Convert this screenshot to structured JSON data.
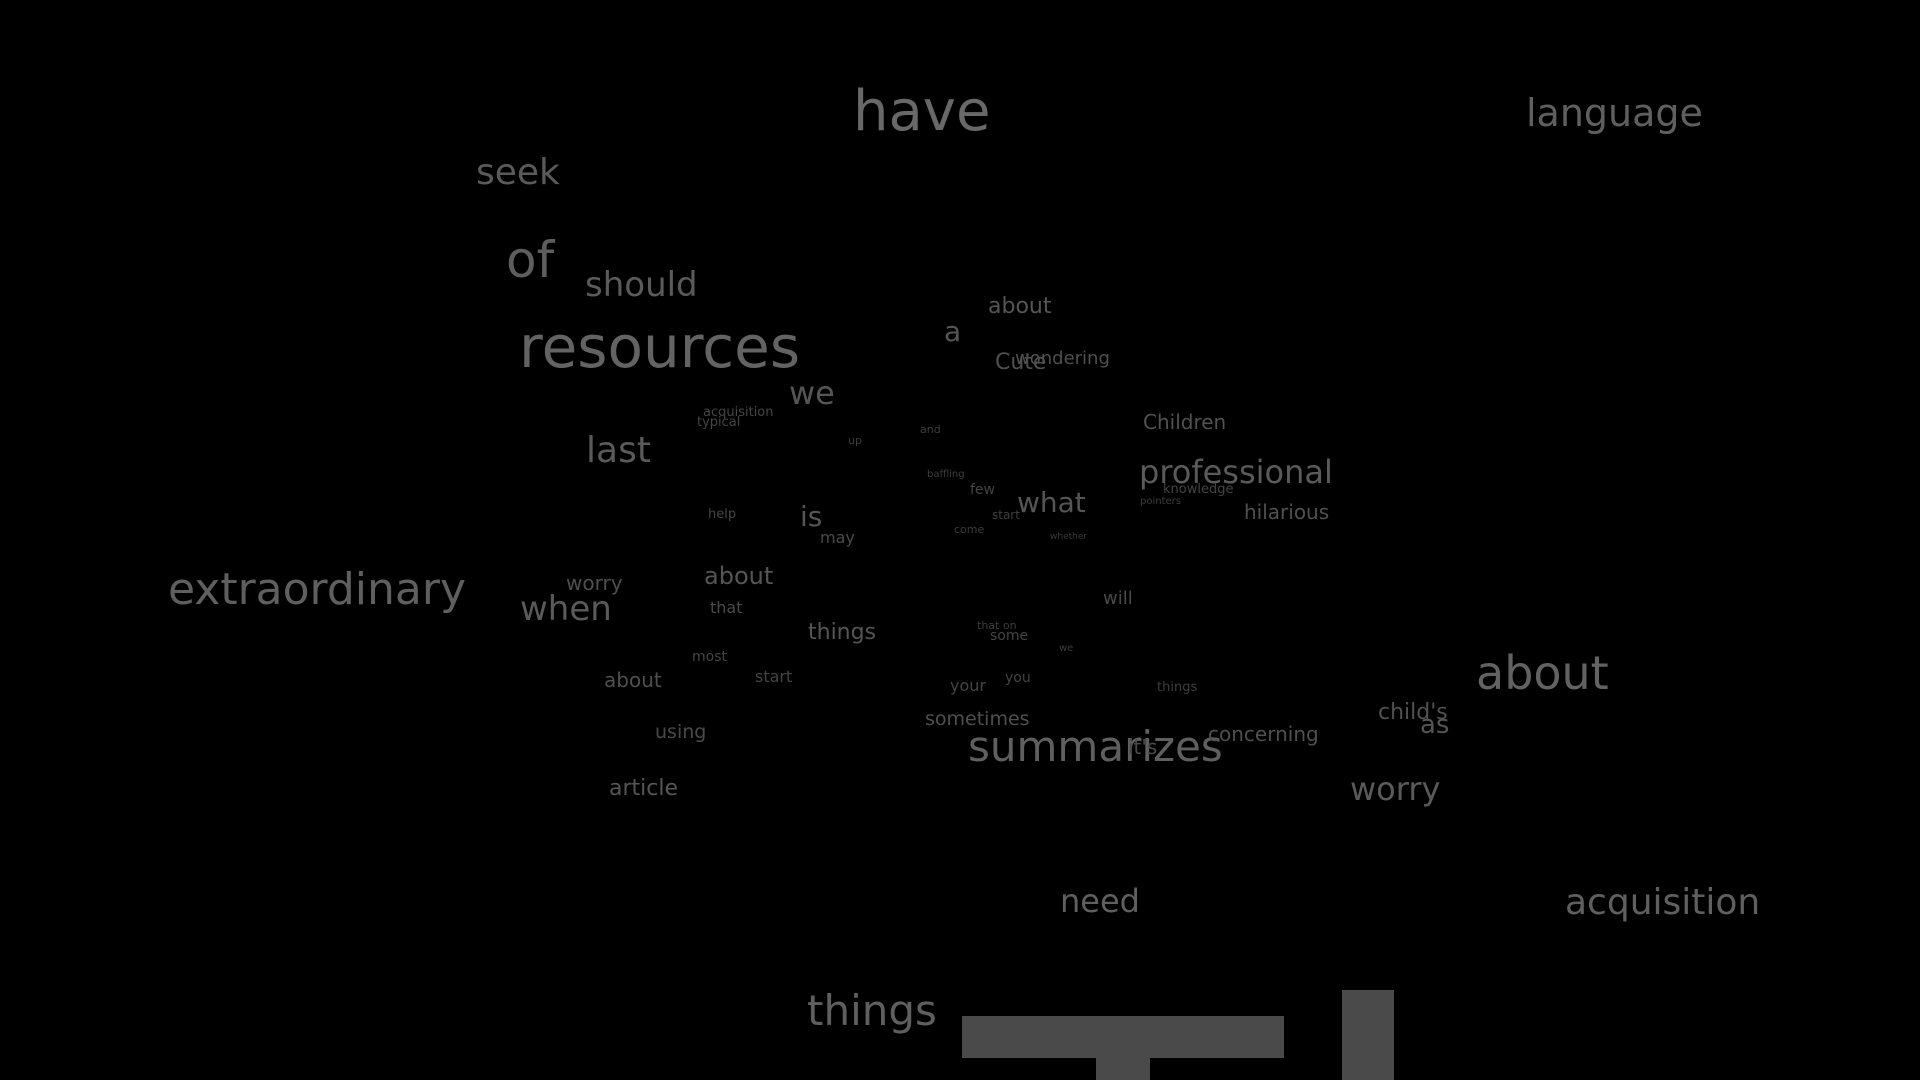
{
  "words": [
    {
      "text": "have",
      "color": "#686868"
    },
    {
      "text": "language",
      "color": "#5f5f5f"
    },
    {
      "text": "seek",
      "color": "#5a5a5a"
    },
    {
      "text": "of",
      "color": "#5e5e5e"
    },
    {
      "text": "should",
      "color": "#5a5a5a"
    },
    {
      "text": "resources",
      "color": "#636363"
    },
    {
      "text": "about",
      "color": "#555555"
    },
    {
      "text": "a",
      "color": "#555555"
    },
    {
      "text": "Cute",
      "color": "#4f4f4f"
    },
    {
      "text": "wondering",
      "color": "#4f4f4f"
    },
    {
      "text": "we",
      "color": "#555555"
    },
    {
      "text": "acquisition",
      "color": "#444444"
    },
    {
      "text": "typical",
      "color": "#444444"
    },
    {
      "text": "last",
      "color": "#5a5a5a"
    },
    {
      "text": "up",
      "color": "#3c3c3c"
    },
    {
      "text": "and",
      "color": "#3c3c3c"
    },
    {
      "text": "Children",
      "color": "#515151"
    },
    {
      "text": "professional",
      "color": "#5a5a5a"
    },
    {
      "text": "baffling",
      "color": "#3e3e3e"
    },
    {
      "text": "few",
      "color": "#444444"
    },
    {
      "text": "what",
      "color": "#555555"
    },
    {
      "text": "knowledge",
      "color": "#444444"
    },
    {
      "text": "pointers",
      "color": "#3c3c3c"
    },
    {
      "text": "hilarious",
      "color": "#515151"
    },
    {
      "text": "help",
      "color": "#444444"
    },
    {
      "text": "is",
      "color": "#555555"
    },
    {
      "text": "start",
      "color": "#3e3e3e"
    },
    {
      "text": "come",
      "color": "#3c3c3c"
    },
    {
      "text": "may",
      "color": "#4a4a4a"
    },
    {
      "text": "whether",
      "color": "#3a3a3a"
    },
    {
      "text": "extraordinary",
      "color": "#5f5f5f"
    },
    {
      "text": "worry",
      "color": "#4f4f4f"
    },
    {
      "text": "about",
      "color": "#555555"
    },
    {
      "text": "when",
      "color": "#5a5a5a"
    },
    {
      "text": "that",
      "color": "#4a4a4a"
    },
    {
      "text": "will",
      "color": "#4a4a4a"
    },
    {
      "text": "things",
      "color": "#555555"
    },
    {
      "text": "that on",
      "color": "#3c3c3c"
    },
    {
      "text": "some",
      "color": "#444444"
    },
    {
      "text": "we",
      "color": "#3c3c3c"
    },
    {
      "text": "about",
      "color": "#626262"
    },
    {
      "text": "most",
      "color": "#444444"
    },
    {
      "text": "about",
      "color": "#4f4f4f"
    },
    {
      "text": "start",
      "color": "#444444"
    },
    {
      "text": "your",
      "color": "#444444"
    },
    {
      "text": "you",
      "color": "#444444"
    },
    {
      "text": "things",
      "color": "#3e3e3e"
    },
    {
      "text": "child's",
      "color": "#515151"
    },
    {
      "text": "as",
      "color": "#555555"
    },
    {
      "text": "sometimes",
      "color": "#4f4f4f"
    },
    {
      "text": "using",
      "color": "#4a4a4a"
    },
    {
      "text": "summarizes",
      "color": "#5f5f5f"
    },
    {
      "text": "it's",
      "color": "#4a4a4a"
    },
    {
      "text": "concerning",
      "color": "#4f4f4f"
    },
    {
      "text": "article",
      "color": "#555555"
    },
    {
      "text": "worry",
      "color": "#5a5a5a"
    },
    {
      "text": "need",
      "color": "#5f5f5f"
    },
    {
      "text": "acquisition",
      "color": "#5f5f5f"
    },
    {
      "text": "things",
      "color": "#5f5f5f"
    }
  ],
  "foreground_word": {
    "color": "#4a4a4a"
  }
}
